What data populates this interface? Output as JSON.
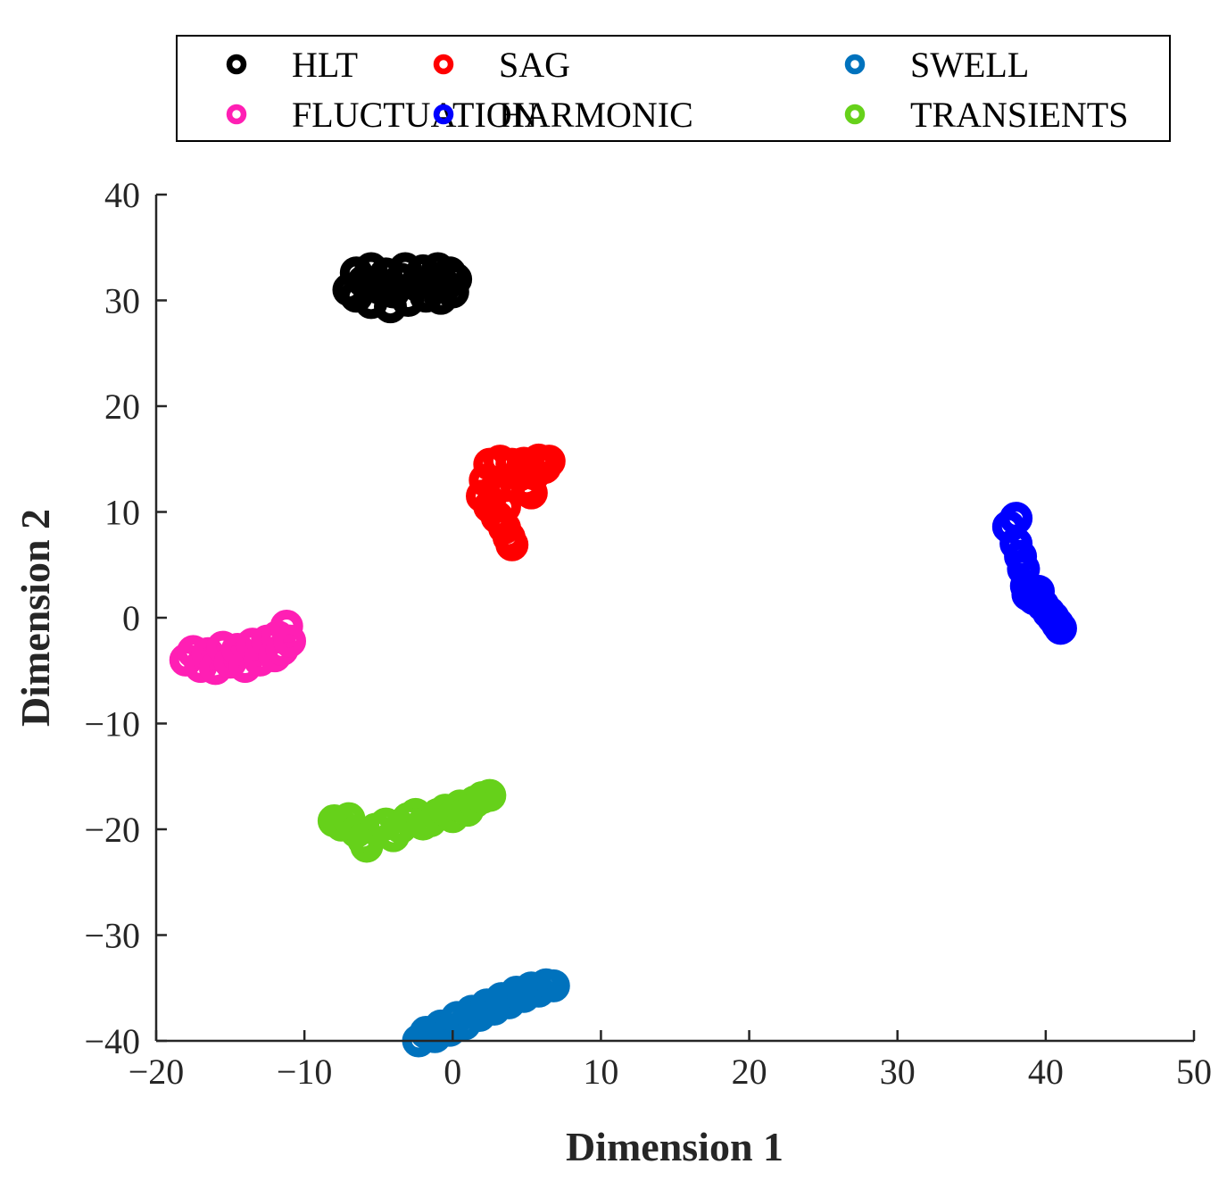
{
  "chart_data": {
    "type": "scatter",
    "title": "",
    "xlabel": "Dimension 1",
    "ylabel": "Dimension 2",
    "xlim": [
      -20,
      50
    ],
    "ylim": [
      -40,
      40
    ],
    "xticks": [
      -20,
      -10,
      0,
      10,
      20,
      30,
      40,
      50
    ],
    "yticks": [
      -40,
      -30,
      -20,
      -10,
      0,
      10,
      20,
      30,
      40
    ],
    "xtick_labels": [
      "−20",
      "−10",
      "0",
      "10",
      "20",
      "30",
      "40",
      "50"
    ],
    "ytick_labels": [
      "−40",
      "−30",
      "−20",
      "−10",
      "0",
      "10",
      "20",
      "30",
      "40"
    ],
    "grid": false,
    "legend_position": "top",
    "marker": "open-circle",
    "series": [
      {
        "name": "HLT",
        "color": "#000000",
        "points": [
          [
            -7,
            31
          ],
          [
            -6.5,
            32.6
          ],
          [
            -6.5,
            30.4
          ],
          [
            -6,
            31.8
          ],
          [
            -5.5,
            33
          ],
          [
            -5.5,
            29.8
          ],
          [
            -5,
            31.2
          ],
          [
            -4.5,
            32.5
          ],
          [
            -4.2,
            29.4
          ],
          [
            -4,
            30.8
          ],
          [
            -3.5,
            32
          ],
          [
            -3.2,
            33
          ],
          [
            -3,
            30
          ],
          [
            -2.5,
            31.5
          ],
          [
            -2,
            32.8
          ],
          [
            -1.8,
            30.4
          ],
          [
            -1.5,
            31.8
          ],
          [
            -1,
            33
          ],
          [
            -0.8,
            30.2
          ],
          [
            -0.5,
            31.4
          ],
          [
            -0.2,
            32.6
          ],
          [
            0,
            30.8
          ],
          [
            0.2,
            32
          ]
        ]
      },
      {
        "name": "SAG",
        "color": "#ff0000",
        "points": [
          [
            2,
            11.5
          ],
          [
            2.2,
            13
          ],
          [
            2.5,
            14.5
          ],
          [
            2.5,
            10.5
          ],
          [
            2.8,
            12
          ],
          [
            3,
            9.5
          ],
          [
            3.2,
            14.8
          ],
          [
            3.5,
            8.5
          ],
          [
            3.6,
            12.5
          ],
          [
            3.8,
            7.6
          ],
          [
            4,
            6.9
          ],
          [
            3.5,
            10.5
          ],
          [
            4,
            14.5
          ],
          [
            4.5,
            13.5
          ],
          [
            4.8,
            14.6
          ],
          [
            5,
            12.5
          ],
          [
            5.3,
            11.8
          ],
          [
            5.5,
            13.6
          ],
          [
            5.8,
            14.9
          ],
          [
            6.2,
            14.2
          ],
          [
            6.5,
            14.8
          ]
        ]
      },
      {
        "name": "SWELL",
        "color": "#0072bd",
        "points": [
          [
            -2.3,
            -40
          ],
          [
            -1.8,
            -39.2
          ],
          [
            -1.2,
            -39.6
          ],
          [
            -0.8,
            -38.6
          ],
          [
            -0.2,
            -39
          ],
          [
            0.3,
            -37.8
          ],
          [
            0.8,
            -38.4
          ],
          [
            1.3,
            -37.2
          ],
          [
            1.8,
            -37.6
          ],
          [
            2.3,
            -36.6
          ],
          [
            2.8,
            -37
          ],
          [
            3.3,
            -36
          ],
          [
            3.8,
            -36.4
          ],
          [
            4.3,
            -35.4
          ],
          [
            4.8,
            -35.8
          ],
          [
            5.3,
            -35
          ],
          [
            5.8,
            -35.3
          ],
          [
            6.3,
            -34.7
          ],
          [
            6.8,
            -34.8
          ]
        ]
      },
      {
        "name": "FLUCTUATION",
        "color": "#ff1fb4",
        "points": [
          [
            -18,
            -4
          ],
          [
            -17.5,
            -3.2
          ],
          [
            -17,
            -4.6
          ],
          [
            -16.5,
            -3.4
          ],
          [
            -16,
            -4.8
          ],
          [
            -15.5,
            -2.8
          ],
          [
            -15,
            -4.2
          ],
          [
            -14.5,
            -3
          ],
          [
            -14,
            -4.6
          ],
          [
            -13.5,
            -2.5
          ],
          [
            -13,
            -4
          ],
          [
            -12.5,
            -2.2
          ],
          [
            -12,
            -3.6
          ],
          [
            -11.8,
            -1.8
          ],
          [
            -11.5,
            -3
          ],
          [
            -11.2,
            -0.8
          ],
          [
            -11,
            -2.2
          ]
        ]
      },
      {
        "name": "HARMONIC",
        "color": "#0000ff",
        "points": [
          [
            37.5,
            8.6
          ],
          [
            38,
            9.4
          ],
          [
            38,
            7
          ],
          [
            38.3,
            5.8
          ],
          [
            38.5,
            4.6
          ],
          [
            38.7,
            3
          ],
          [
            38.8,
            2.2
          ],
          [
            39.2,
            1.8
          ],
          [
            39.5,
            2.5
          ],
          [
            39.8,
            1.2
          ],
          [
            40.2,
            0.5
          ],
          [
            40.5,
            0
          ],
          [
            40.8,
            -0.6
          ],
          [
            41,
            -1
          ]
        ]
      },
      {
        "name": "TRANSIENTS",
        "color": "#66d11a",
        "points": [
          [
            -8,
            -19.2
          ],
          [
            -7.5,
            -19.6
          ],
          [
            -7,
            -19
          ],
          [
            -6.5,
            -20.2
          ],
          [
            -6,
            -21
          ],
          [
            -5.8,
            -21.6
          ],
          [
            -5.2,
            -20
          ],
          [
            -4.5,
            -19.5
          ],
          [
            -4,
            -20.6
          ],
          [
            -3.5,
            -19.8
          ],
          [
            -3,
            -19
          ],
          [
            -2.5,
            -18.6
          ],
          [
            -2,
            -19.5
          ],
          [
            -1.5,
            -19.2
          ],
          [
            -1,
            -18.6
          ],
          [
            -0.5,
            -18.2
          ],
          [
            0,
            -18.8
          ],
          [
            0.5,
            -17.8
          ],
          [
            1,
            -18.2
          ],
          [
            1.5,
            -17.4
          ],
          [
            2,
            -17
          ],
          [
            2.5,
            -16.8
          ]
        ]
      }
    ]
  }
}
